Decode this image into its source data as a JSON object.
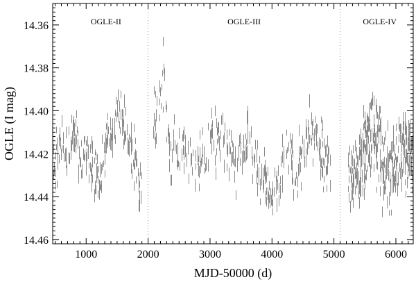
{
  "chart_data": {
    "type": "scatter",
    "title": "",
    "xlabel": "MJD-50000 (d)",
    "ylabel": "OGLE (I mag)",
    "xlim": [
      460,
      6280
    ],
    "ylim": [
      14.462,
      14.35
    ],
    "y_inverted": true,
    "x_ticks": [
      1000,
      2000,
      3000,
      4000,
      5000,
      6000
    ],
    "x_tick_labels": [
      "1000",
      "2000",
      "3000",
      "4000",
      "5000",
      "6000"
    ],
    "y_ticks": [
      14.36,
      14.38,
      14.4,
      14.42,
      14.44,
      14.46
    ],
    "y_tick_labels": [
      "14.36",
      "14.38",
      "14.40",
      "14.42",
      "14.44",
      "14.46"
    ],
    "grid": false,
    "marker_color": "#8a8a8a",
    "marker": "vertical error bar",
    "survey_boundaries": [
      2000,
      5100
    ],
    "survey_labels": [
      {
        "text": "OGLE-II",
        "x": 1320
      },
      {
        "text": "OGLE-III",
        "x": 3550
      },
      {
        "text": "OGLE-IV",
        "x": 5740
      }
    ],
    "series_envelope": {
      "x": [
        470,
        520,
        600,
        700,
        800,
        900,
        1000,
        1100,
        1200,
        1300,
        1400,
        1500,
        1600,
        1700,
        1800,
        1880,
        2080,
        2150,
        2250,
        2350,
        2500,
        2600,
        2700,
        2800,
        2900,
        3000,
        3100,
        3200,
        3300,
        3400,
        3500,
        3600,
        3700,
        3800,
        3900,
        4000,
        4100,
        4200,
        4300,
        4400,
        4500,
        4600,
        4700,
        4800,
        4900,
        5230,
        5300,
        5400,
        5500,
        5600,
        5700,
        5800,
        5900,
        6000,
        6100,
        6200,
        6270
      ],
      "y_mean": [
        14.425,
        14.42,
        14.418,
        14.415,
        14.412,
        14.418,
        14.42,
        14.425,
        14.43,
        14.42,
        14.41,
        14.405,
        14.408,
        14.418,
        14.425,
        14.435,
        14.41,
        14.395,
        14.39,
        14.415,
        14.42,
        14.418,
        14.42,
        14.425,
        14.42,
        14.415,
        14.412,
        14.41,
        14.418,
        14.425,
        14.42,
        14.415,
        14.42,
        14.43,
        14.435,
        14.44,
        14.432,
        14.425,
        14.42,
        14.43,
        14.42,
        14.41,
        14.415,
        14.42,
        14.425,
        14.428,
        14.432,
        14.428,
        14.418,
        14.41,
        14.415,
        14.425,
        14.43,
        14.425,
        14.42,
        14.418,
        14.42
      ],
      "y_spread": [
        0.012,
        0.012,
        0.01,
        0.01,
        0.01,
        0.01,
        0.01,
        0.012,
        0.012,
        0.012,
        0.012,
        0.012,
        0.012,
        0.01,
        0.012,
        0.012,
        0.014,
        0.016,
        0.016,
        0.014,
        0.01,
        0.01,
        0.01,
        0.01,
        0.01,
        0.012,
        0.012,
        0.012,
        0.01,
        0.01,
        0.01,
        0.012,
        0.012,
        0.012,
        0.01,
        0.01,
        0.01,
        0.012,
        0.01,
        0.012,
        0.012,
        0.012,
        0.012,
        0.012,
        0.012,
        0.01,
        0.012,
        0.014,
        0.016,
        0.016,
        0.016,
        0.016,
        0.014,
        0.014,
        0.014,
        0.014,
        0.012
      ],
      "point_count": 950
    }
  }
}
